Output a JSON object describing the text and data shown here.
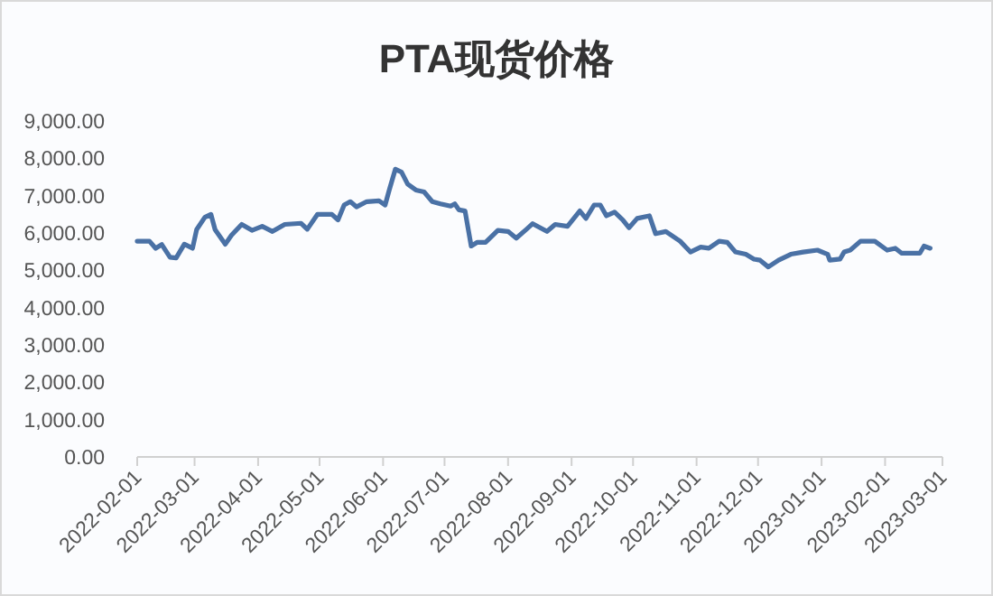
{
  "chart_data": {
    "type": "line",
    "title": "PTA现货价格",
    "x": [
      "2022-02-01",
      "2022-02-07",
      "2022-02-10",
      "2022-02-13",
      "2022-02-17",
      "2022-02-20",
      "2022-02-24",
      "2022-02-28",
      "2022-03-02",
      "2022-03-06",
      "2022-03-09",
      "2022-03-11",
      "2022-03-16",
      "2022-03-19",
      "2022-03-24",
      "2022-03-29",
      "2022-04-03",
      "2022-04-08",
      "2022-04-14",
      "2022-04-22",
      "2022-04-25",
      "2022-04-30",
      "2022-05-07",
      "2022-05-10",
      "2022-05-13",
      "2022-05-16",
      "2022-05-19",
      "2022-05-24",
      "2022-05-30",
      "2022-06-02",
      "2022-06-04",
      "2022-06-07",
      "2022-06-10",
      "2022-06-13",
      "2022-06-17",
      "2022-06-21",
      "2022-06-25",
      "2022-06-29",
      "2022-07-04",
      "2022-07-06",
      "2022-07-08",
      "2022-07-11",
      "2022-07-14",
      "2022-07-17",
      "2022-07-21",
      "2022-07-27",
      "2022-08-01",
      "2022-08-05",
      "2022-08-10",
      "2022-08-13",
      "2022-08-20",
      "2022-08-24",
      "2022-08-30",
      "2022-09-05",
      "2022-09-08",
      "2022-09-12",
      "2022-09-15",
      "2022-09-18",
      "2022-09-22",
      "2022-09-26",
      "2022-09-29",
      "2022-10-03",
      "2022-10-09",
      "2022-10-12",
      "2022-10-17",
      "2022-10-24",
      "2022-10-29",
      "2022-11-03",
      "2022-11-07",
      "2022-11-12",
      "2022-11-16",
      "2022-11-20",
      "2022-11-25",
      "2022-11-29",
      "2022-12-02",
      "2022-12-06",
      "2022-12-11",
      "2022-12-17",
      "2022-12-23",
      "2022-12-30",
      "2023-01-04",
      "2023-01-05",
      "2023-01-10",
      "2023-01-12",
      "2023-01-15",
      "2023-01-20",
      "2023-01-27",
      "2023-02-02",
      "2023-02-06",
      "2023-02-09",
      "2023-02-18",
      "2023-02-20",
      "2023-02-23"
    ],
    "series": [
      {
        "color": "#4a71a5",
        "values": [
          5780,
          5780,
          5590,
          5690,
          5350,
          5330,
          5700,
          5590,
          6090,
          6420,
          6500,
          6090,
          5700,
          5940,
          6230,
          6070,
          6180,
          6040,
          6230,
          6260,
          6100,
          6500,
          6500,
          6350,
          6750,
          6840,
          6700,
          6840,
          6860,
          6750,
          7150,
          7710,
          7630,
          7310,
          7150,
          7100,
          6840,
          6780,
          6720,
          6780,
          6620,
          6590,
          5650,
          5750,
          5750,
          6070,
          6040,
          5860,
          6100,
          6250,
          6040,
          6230,
          6180,
          6590,
          6390,
          6750,
          6750,
          6460,
          6560,
          6350,
          6140,
          6390,
          6460,
          5980,
          6040,
          5780,
          5490,
          5620,
          5590,
          5780,
          5750,
          5490,
          5430,
          5300,
          5270,
          5090,
          5270,
          5430,
          5490,
          5540,
          5430,
          5270,
          5300,
          5490,
          5540,
          5780,
          5780,
          5540,
          5590,
          5460,
          5460,
          5650,
          5590
        ]
      }
    ],
    "xlim": [
      "2022-02-01",
      "2023-03-01"
    ],
    "xticks": [
      "2022-02-01",
      "2022-03-01",
      "2022-04-01",
      "2022-05-01",
      "2022-06-01",
      "2022-07-01",
      "2022-08-01",
      "2022-09-01",
      "2022-10-01",
      "2022-11-01",
      "2022-12-01",
      "2023-01-01",
      "2023-02-01",
      "2023-03-01"
    ],
    "ylim": [
      0,
      9000
    ],
    "yticks": [
      {
        "value": 0,
        "label": "0.00"
      },
      {
        "value": 1000,
        "label": "1,000.00"
      },
      {
        "value": 2000,
        "label": "2,000.00"
      },
      {
        "value": 3000,
        "label": "3,000.00"
      },
      {
        "value": 4000,
        "label": "4,000.00"
      },
      {
        "value": 5000,
        "label": "5,000.00"
      },
      {
        "value": 6000,
        "label": "6,000.00"
      },
      {
        "value": 7000,
        "label": "7,000.00"
      },
      {
        "value": 8000,
        "label": "8,000.00"
      },
      {
        "value": 9000,
        "label": "9,000.00"
      }
    ],
    "grid": false,
    "marker": "none",
    "line_style": "solid"
  }
}
